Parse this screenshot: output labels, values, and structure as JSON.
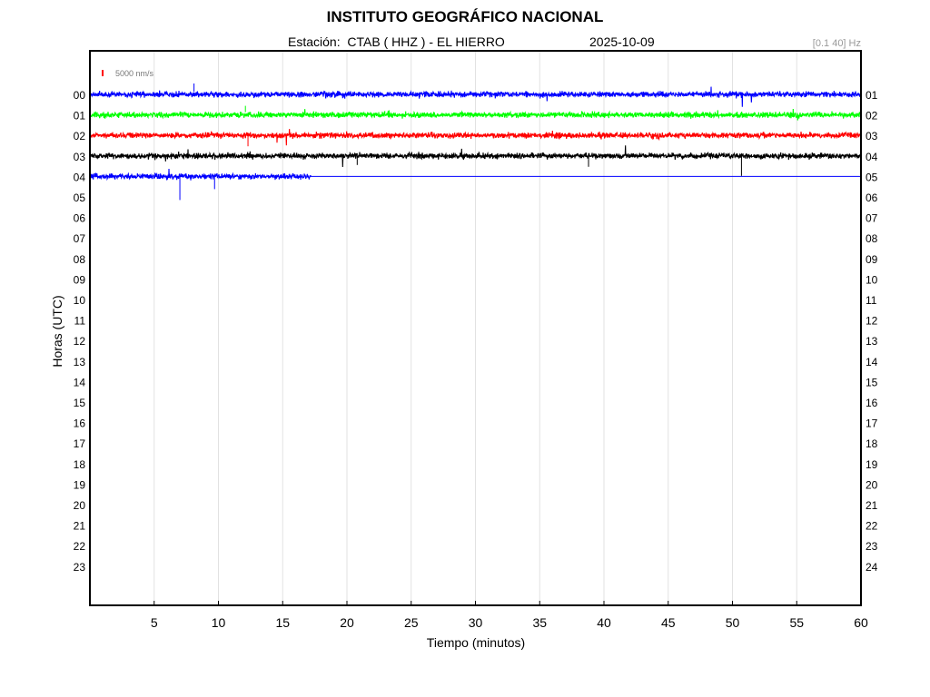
{
  "header": {
    "title": "INSTITUTO GEOGRÁFICO NACIONAL",
    "station": "Estación:  CTAB ( HHZ ) - EL HIERRO",
    "date": "2025-10-09",
    "filter": "[0.1 40] Hz"
  },
  "chart_data": {
    "type": "line",
    "title": "INSTITUTO GEOGRÁFICO NACIONAL",
    "xlabel": "Tiempo (minutos)",
    "ylabel": "Horas (UTC)",
    "xlim": [
      0,
      60
    ],
    "x_ticks": [
      "5",
      "10",
      "15",
      "20",
      "25",
      "30",
      "35",
      "40",
      "45",
      "50",
      "55",
      "60"
    ],
    "left_hour_labels": [
      "00",
      "01",
      "02",
      "03",
      "04",
      "05",
      "06",
      "07",
      "08",
      "09",
      "10",
      "11",
      "12",
      "13",
      "14",
      "15",
      "16",
      "17",
      "18",
      "19",
      "20",
      "21",
      "22",
      "23"
    ],
    "right_hour_labels": [
      "01",
      "02",
      "03",
      "04",
      "05",
      "06",
      "07",
      "08",
      "09",
      "10",
      "11",
      "12",
      "13",
      "14",
      "15",
      "16",
      "17",
      "18",
      "19",
      "20",
      "21",
      "22",
      "23",
      "24"
    ],
    "scale_bar": {
      "label": "5000 nm/s",
      "color": "#ff0000"
    },
    "grid": "vertical",
    "traces": [
      {
        "hour": "00",
        "color": "#0000ff",
        "x_start": 0,
        "x_end": 60
      },
      {
        "hour": "01",
        "color": "#00ff00",
        "x_start": 0,
        "x_end": 60
      },
      {
        "hour": "02",
        "color": "#ff0000",
        "x_start": 0,
        "x_end": 60
      },
      {
        "hour": "03",
        "color": "#000000",
        "x_start": 0,
        "x_end": 60
      },
      {
        "hour": "04",
        "color": "#0000ff",
        "x_start": 0,
        "x_end": 17.2
      }
    ]
  }
}
